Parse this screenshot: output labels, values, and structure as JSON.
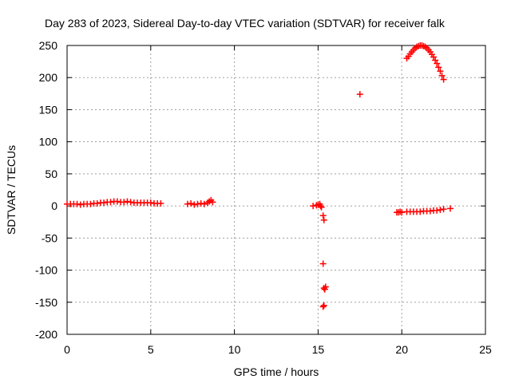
{
  "chart_data": {
    "type": "scatter",
    "title": "Day 283 of 2023, Sidereal Day-to-day VTEC variation (SDTVAR) for receiver falk",
    "xlabel": "GPS time / hours",
    "ylabel": "SDTVAR / TECUs",
    "xlim": [
      0,
      25
    ],
    "ylim": [
      -200,
      250
    ],
    "xticks": [
      0,
      5,
      10,
      15,
      20,
      25
    ],
    "yticks": [
      -200,
      -150,
      -100,
      -50,
      0,
      50,
      100,
      150,
      200,
      250
    ],
    "grid": true,
    "marker": "plus",
    "color": "#ff0000",
    "points": [
      [
        0.0,
        3
      ],
      [
        0.2,
        3
      ],
      [
        0.4,
        3
      ],
      [
        0.6,
        3
      ],
      [
        0.8,
        2
      ],
      [
        1.0,
        3
      ],
      [
        1.2,
        3
      ],
      [
        1.4,
        3
      ],
      [
        1.6,
        4
      ],
      [
        1.8,
        4
      ],
      [
        2.0,
        5
      ],
      [
        2.2,
        5
      ],
      [
        2.4,
        6
      ],
      [
        2.6,
        6
      ],
      [
        2.8,
        7
      ],
      [
        3.0,
        7
      ],
      [
        3.2,
        6
      ],
      [
        3.4,
        6
      ],
      [
        3.6,
        7
      ],
      [
        3.8,
        6
      ],
      [
        4.0,
        5
      ],
      [
        4.2,
        5
      ],
      [
        4.4,
        5
      ],
      [
        4.6,
        5
      ],
      [
        4.8,
        5
      ],
      [
        5.0,
        5
      ],
      [
        5.2,
        4
      ],
      [
        5.4,
        4
      ],
      [
        5.6,
        4
      ],
      [
        7.2,
        3
      ],
      [
        7.4,
        4
      ],
      [
        7.6,
        2
      ],
      [
        7.8,
        3
      ],
      [
        8.0,
        4
      ],
      [
        8.2,
        3
      ],
      [
        8.4,
        5
      ],
      [
        8.5,
        7
      ],
      [
        8.6,
        9
      ],
      [
        8.7,
        6
      ],
      [
        14.7,
        0
      ],
      [
        14.9,
        1
      ],
      [
        15.0,
        2
      ],
      [
        15.1,
        3
      ],
      [
        15.15,
        0
      ],
      [
        15.2,
        -2
      ],
      [
        15.3,
        -15
      ],
      [
        15.35,
        -22
      ],
      [
        15.3,
        -90
      ],
      [
        15.35,
        -128
      ],
      [
        15.4,
        -130
      ],
      [
        15.45,
        -126
      ],
      [
        15.3,
        -157
      ],
      [
        15.35,
        -155
      ],
      [
        17.5,
        174
      ],
      [
        19.7,
        -10
      ],
      [
        19.8,
        -10
      ],
      [
        19.9,
        -9
      ],
      [
        20.0,
        -10
      ],
      [
        20.3,
        -9
      ],
      [
        20.5,
        -9
      ],
      [
        20.7,
        -9
      ],
      [
        20.9,
        -9
      ],
      [
        21.1,
        -9
      ],
      [
        21.3,
        -8
      ],
      [
        21.5,
        -8
      ],
      [
        21.7,
        -8
      ],
      [
        21.9,
        -7
      ],
      [
        22.1,
        -7
      ],
      [
        22.3,
        -6
      ],
      [
        22.5,
        -5
      ],
      [
        22.9,
        -4
      ],
      [
        20.3,
        230
      ],
      [
        20.4,
        233
      ],
      [
        20.5,
        237
      ],
      [
        20.6,
        240
      ],
      [
        20.7,
        243
      ],
      [
        20.8,
        246
      ],
      [
        20.9,
        248
      ],
      [
        21.0,
        249
      ],
      [
        21.1,
        250
      ],
      [
        21.2,
        250
      ],
      [
        21.3,
        249
      ],
      [
        21.4,
        248
      ],
      [
        21.5,
        246
      ],
      [
        21.6,
        243
      ],
      [
        21.7,
        240
      ],
      [
        21.8,
        236
      ],
      [
        21.9,
        232
      ],
      [
        22.0,
        227
      ],
      [
        22.1,
        222
      ],
      [
        22.2,
        216
      ],
      [
        22.3,
        210
      ],
      [
        22.4,
        203
      ],
      [
        22.5,
        197
      ]
    ]
  }
}
